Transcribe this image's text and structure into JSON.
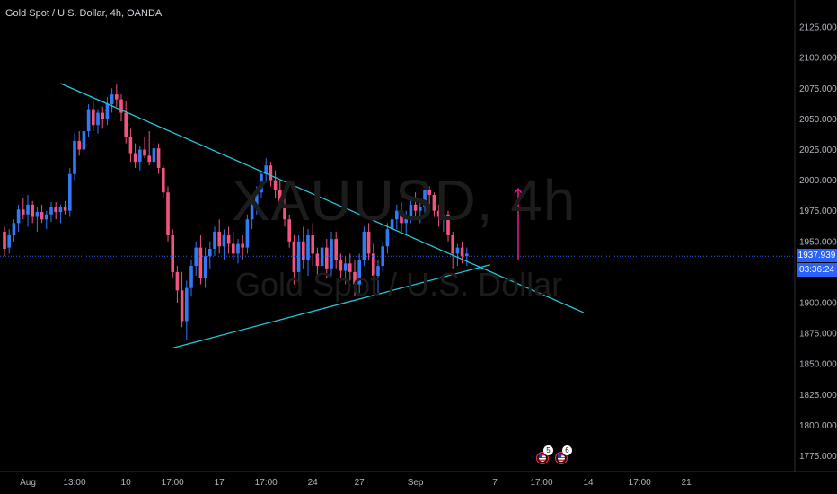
{
  "header": {
    "symbol_title": "Gold Spot / U.S. Dollar, 4h, OANDA"
  },
  "watermark": {
    "symbol": "XAUUSD, 4h",
    "description": "Gold Spot / U.S. Dollar"
  },
  "price_badges": {
    "last_price": "1937.939",
    "countdown": "03:36:24"
  },
  "event_markers": [
    {
      "icon": "us-flag-icon",
      "count": "5"
    },
    {
      "icon": "us-flag-icon",
      "count": "6"
    }
  ],
  "colors": {
    "background": "#000000",
    "bull_candle": "#3179f5",
    "bear_candle": "#f2547e",
    "trendline": "#26c6da",
    "projection_arrow": "#e91e8c",
    "last_price_line": "#2962ff",
    "axis_text": "#b2b5be"
  },
  "chart_data": {
    "type": "candlestick",
    "title": "Gold Spot / U.S. Dollar, 4h, OANDA",
    "y_axis": {
      "side": "right",
      "range": [
        1765,
        2135
      ],
      "ticks": [
        "2125.000",
        "2100.000",
        "2075.000",
        "2050.000",
        "2025.000",
        "2000.000",
        "1975.000",
        "1950.000",
        "1925.000",
        "1900.000",
        "1875.000",
        "1850.000",
        "1825.000",
        "1800.000",
        "1775.000"
      ],
      "tick_values": [
        2125,
        2100,
        2075,
        2050,
        2025,
        2000,
        1975,
        1950,
        1925,
        1900,
        1875,
        1850,
        1825,
        1800,
        1775
      ]
    },
    "x_axis": {
      "ticks": [
        "Aug",
        "13:00",
        "10",
        "17:00",
        "17",
        "17:00",
        "24",
        "27",
        "Sep",
        "7",
        "17:00",
        "14",
        "17:00",
        "21"
      ],
      "tick_bars": [
        5,
        15,
        26,
        36,
        46,
        56,
        66,
        76,
        88,
        105,
        115,
        125,
        136,
        146
      ]
    },
    "last_price": 1937.939,
    "ohlc": [
      [
        1958,
        1962,
        1938,
        1944
      ],
      [
        1945,
        1960,
        1940,
        1955
      ],
      [
        1955,
        1968,
        1950,
        1965
      ],
      [
        1965,
        1980,
        1958,
        1976
      ],
      [
        1976,
        1985,
        1968,
        1972
      ],
      [
        1972,
        1988,
        1962,
        1980
      ],
      [
        1980,
        1983,
        1965,
        1970
      ],
      [
        1970,
        1978,
        1958,
        1974
      ],
      [
        1974,
        1980,
        1965,
        1968
      ],
      [
        1968,
        1975,
        1960,
        1972
      ],
      [
        1972,
        1982,
        1966,
        1978
      ],
      [
        1978,
        1982,
        1968,
        1974
      ],
      [
        1974,
        1980,
        1965,
        1978
      ],
      [
        1978,
        1983,
        1972,
        1975
      ],
      [
        1975,
        2010,
        1970,
        2005
      ],
      [
        2005,
        2038,
        2000,
        2032
      ],
      [
        2032,
        2040,
        2020,
        2025
      ],
      [
        2025,
        2045,
        2018,
        2040
      ],
      [
        2040,
        2062,
        2035,
        2058
      ],
      [
        2058,
        2065,
        2040,
        2045
      ],
      [
        2045,
        2058,
        2038,
        2055
      ],
      [
        2055,
        2060,
        2042,
        2050
      ],
      [
        2050,
        2068,
        2045,
        2062
      ],
      [
        2062,
        2075,
        2055,
        2070
      ],
      [
        2070,
        2078,
        2060,
        2066
      ],
      [
        2066,
        2070,
        2048,
        2055
      ],
      [
        2055,
        2065,
        2030,
        2035
      ],
      [
        2035,
        2042,
        2015,
        2022
      ],
      [
        2022,
        2030,
        2010,
        2015
      ],
      [
        2015,
        2028,
        2008,
        2025
      ],
      [
        2025,
        2035,
        2018,
        2020
      ],
      [
        2020,
        2040,
        2012,
        2015
      ],
      [
        2015,
        2032,
        2008,
        2026
      ],
      [
        2026,
        2030,
        2005,
        2010
      ],
      [
        2010,
        2012,
        1985,
        1990
      ],
      [
        1990,
        1995,
        1950,
        1955
      ],
      [
        1955,
        1960,
        1920,
        1925
      ],
      [
        1925,
        1930,
        1900,
        1910
      ],
      [
        1910,
        1925,
        1880,
        1885
      ],
      [
        1885,
        1918,
        1870,
        1912
      ],
      [
        1912,
        1935,
        1905,
        1930
      ],
      [
        1930,
        1950,
        1922,
        1945
      ],
      [
        1945,
        1955,
        1915,
        1920
      ],
      [
        1920,
        1945,
        1912,
        1938
      ],
      [
        1938,
        1950,
        1928,
        1944
      ],
      [
        1944,
        1962,
        1938,
        1958
      ],
      [
        1958,
        1968,
        1940,
        1946
      ],
      [
        1946,
        1960,
        1935,
        1955
      ],
      [
        1955,
        1962,
        1940,
        1948
      ],
      [
        1948,
        1958,
        1935,
        1940
      ],
      [
        1940,
        1952,
        1932,
        1948
      ],
      [
        1948,
        1955,
        1935,
        1945
      ],
      [
        1945,
        1972,
        1940,
        1968
      ],
      [
        1968,
        1985,
        1960,
        1980
      ],
      [
        1980,
        1995,
        1972,
        1990
      ],
      [
        1990,
        2008,
        1985,
        2005
      ],
      [
        2005,
        2018,
        1998,
        2012
      ],
      [
        2012,
        2015,
        1995,
        2000
      ],
      [
        2000,
        2008,
        1985,
        1992
      ],
      [
        1992,
        2000,
        1975,
        1980
      ],
      [
        1980,
        1988,
        1962,
        1968
      ],
      [
        1968,
        1972,
        1945,
        1950
      ],
      [
        1950,
        1955,
        1915,
        1925
      ],
      [
        1925,
        1955,
        1918,
        1950
      ],
      [
        1950,
        1962,
        1928,
        1935
      ],
      [
        1935,
        1960,
        1922,
        1955
      ],
      [
        1955,
        1965,
        1930,
        1940
      ],
      [
        1940,
        1945,
        1918,
        1930
      ],
      [
        1930,
        1950,
        1925,
        1945
      ],
      [
        1945,
        1952,
        1920,
        1928
      ],
      [
        1928,
        1958,
        1922,
        1952
      ],
      [
        1952,
        1958,
        1928,
        1935
      ],
      [
        1935,
        1940,
        1920,
        1926
      ],
      [
        1926,
        1938,
        1915,
        1932
      ],
      [
        1932,
        1940,
        1918,
        1925
      ],
      [
        1925,
        1935,
        1905,
        1915
      ],
      [
        1915,
        1940,
        1908,
        1935
      ],
      [
        1935,
        1962,
        1930,
        1958
      ],
      [
        1958,
        1965,
        1935,
        1940
      ],
      [
        1940,
        1948,
        1915,
        1922
      ],
      [
        1922,
        1935,
        1908,
        1930
      ],
      [
        1930,
        1950,
        1925,
        1946
      ],
      [
        1946,
        1965,
        1940,
        1960
      ],
      [
        1960,
        1972,
        1950,
        1968
      ],
      [
        1968,
        1980,
        1960,
        1975
      ],
      [
        1975,
        1982,
        1958,
        1965
      ],
      [
        1965,
        1975,
        1955,
        1970
      ],
      [
        1970,
        1985,
        1965,
        1980
      ],
      [
        1980,
        1990,
        1970,
        1975
      ],
      [
        1975,
        1982,
        1965,
        1978
      ],
      [
        1978,
        1998,
        1972,
        1992
      ],
      [
        1992,
        1995,
        1980,
        1988
      ],
      [
        1988,
        1990,
        1970,
        1975
      ],
      [
        1975,
        1980,
        1962,
        1970
      ],
      [
        1970,
        1978,
        1958,
        1972
      ],
      [
        1972,
        1975,
        1950,
        1955
      ],
      [
        1955,
        1958,
        1928,
        1940
      ],
      [
        1940,
        1948,
        1930,
        1945
      ],
      [
        1945,
        1950,
        1932,
        1938
      ],
      [
        1938,
        1945,
        1930,
        1940
      ]
    ],
    "trendlines": [
      {
        "from": {
          "bar": 12,
          "price": 2079
        },
        "to": {
          "bar": 112,
          "price": 1912
        }
      },
      {
        "from": {
          "bar": 36,
          "price": 1863
        },
        "to": {
          "bar": 104,
          "price": 1931
        }
      }
    ],
    "annotations": [
      {
        "type": "arrow-up",
        "bar": 110,
        "from_price": 1935,
        "to_price": 1993
      }
    ]
  }
}
